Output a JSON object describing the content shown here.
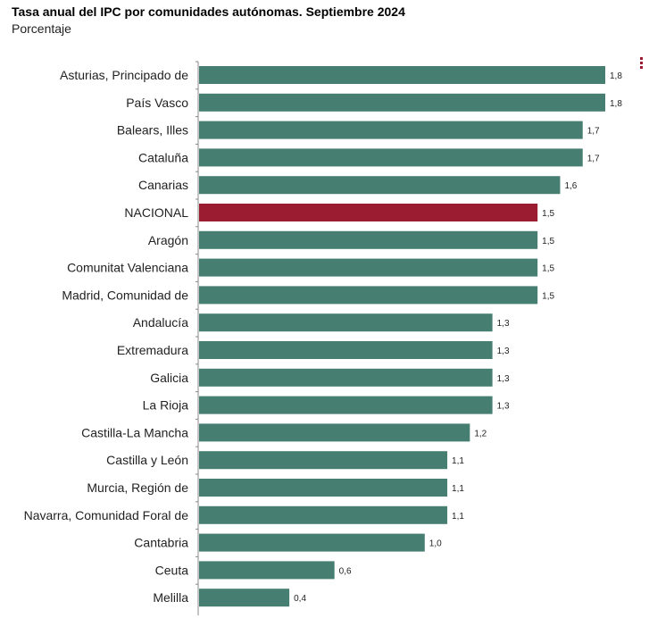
{
  "chart_data": {
    "type": "bar",
    "orientation": "horizontal",
    "title": "Tasa anual del IPC por comunidades autónomas. Septiembre 2024",
    "subtitle": "Porcentaje",
    "xlim": [
      0,
      1.8
    ],
    "categories": [
      "Asturias, Principado de",
      "País Vasco",
      "Balears, Illes",
      "Cataluña",
      "Canarias",
      "NACIONAL",
      "Aragón",
      "Comunitat Valenciana",
      "Madrid, Comunidad de",
      "Andalucía",
      "Extremadura",
      "Galicia",
      "La Rioja",
      "Castilla-La Mancha",
      "Castilla y León",
      "Murcia, Región de",
      "Navarra, Comunidad Foral de",
      "Cantabria",
      "Ceuta",
      "Melilla"
    ],
    "values": [
      1.8,
      1.8,
      1.7,
      1.7,
      1.6,
      1.5,
      1.5,
      1.5,
      1.5,
      1.3,
      1.3,
      1.3,
      1.3,
      1.2,
      1.1,
      1.1,
      1.1,
      1.0,
      0.6,
      0.4
    ],
    "value_labels": [
      "1,8",
      "1,8",
      "1,7",
      "1,7",
      "1,6",
      "1,5",
      "1,5",
      "1,5",
      "1,5",
      "1,3",
      "1,3",
      "1,3",
      "1,3",
      "1,2",
      "1,1",
      "1,1",
      "1,1",
      "1,0",
      "0,6",
      "0,4"
    ],
    "highlight_category": "NACIONAL",
    "colors": {
      "bar": "#477e72",
      "highlight": "#9b1b30",
      "axis": "#888888"
    }
  }
}
